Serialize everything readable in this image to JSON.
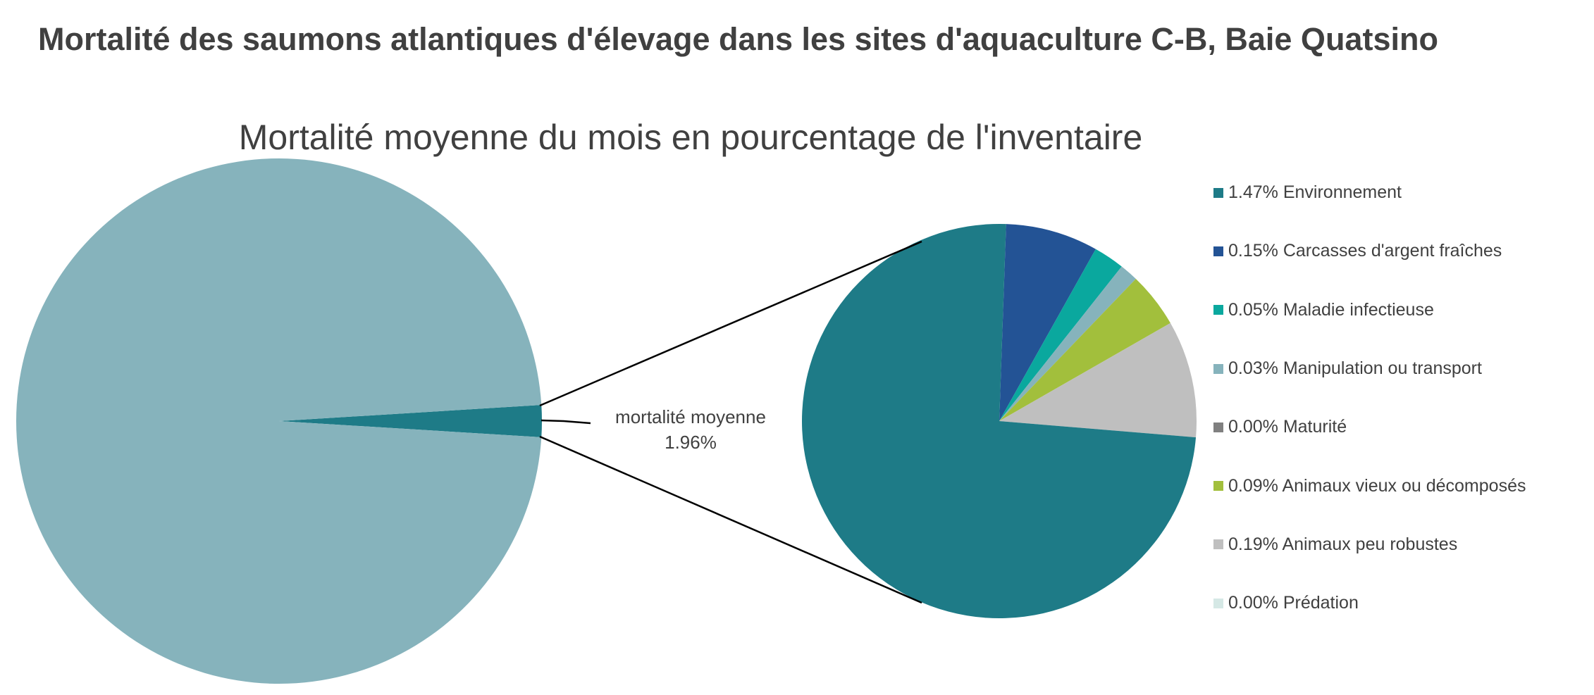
{
  "chart_data": [
    {
      "type": "pie",
      "title": "Mortalité des saumons atlantiques d'élevage dans les sites d'aquaculture C-B, Baie Quatsino",
      "subtitle": "Mortalité moyenne du mois en pourcentage de l'inventaire",
      "slices": [
        {
          "label": "mortalité moyenne",
          "value": 1.96,
          "display": "1.96%",
          "color": "#1e7b87"
        },
        {
          "label": "",
          "value": 98.04,
          "color": "#86b3bc"
        }
      ],
      "callout": {
        "label": "mortalité moyenne",
        "value": "1.96%"
      }
    },
    {
      "type": "pie",
      "note_kind": "pie-of-pie breakdown",
      "slices": [
        {
          "label": "Environnement",
          "value": 1.47,
          "display": "1.47%",
          "color": "#1e7b87"
        },
        {
          "label": "Carcasses d'argent fraîches",
          "value": 0.15,
          "display": "0.15%",
          "color": "#235395"
        },
        {
          "label": "Maladie infectieuse",
          "value": 0.05,
          "display": "0.05%",
          "color": "#0aa89e"
        },
        {
          "label": "Manipulation ou transport",
          "value": 0.03,
          "display": "0.03%",
          "color": "#86b3bc"
        },
        {
          "label": "Maturité",
          "value": 0.0,
          "display": "0.00%",
          "color": "#808080"
        },
        {
          "label": "Animaux vieux ou décomposés",
          "value": 0.09,
          "display": "0.09%",
          "color": "#a2bf3c"
        },
        {
          "label": "Animaux peu robustes",
          "value": 0.19,
          "display": "0.19%",
          "color": "#bfbfbf"
        },
        {
          "label": "Prédation",
          "value": 0.0,
          "display": "0.00%",
          "color": "#d5e8e5"
        }
      ],
      "legend_position": "right"
    }
  ]
}
